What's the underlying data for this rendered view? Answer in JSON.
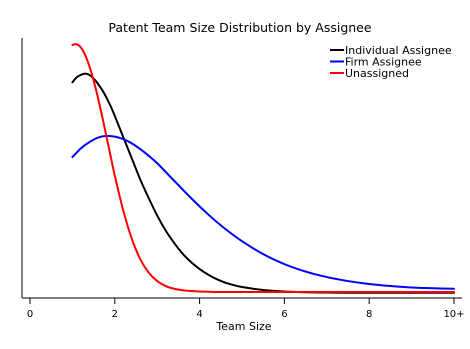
{
  "chart_data": {
    "type": "line",
    "title": "Patent Team Size Distribution by Assignee",
    "xlabel": "Team Size",
    "ylabel": "",
    "xlim": [
      0,
      10
    ],
    "ylim": [
      0,
      1
    ],
    "x_ticks": [
      {
        "value": 0,
        "label": "0"
      },
      {
        "value": 2,
        "label": "2"
      },
      {
        "value": 4,
        "label": "4"
      },
      {
        "value": 6,
        "label": "6"
      },
      {
        "value": 8,
        "label": "8"
      },
      {
        "value": 10,
        "label": "10+"
      }
    ],
    "y_ticks": [],
    "grid": false,
    "legend_position": "top-right",
    "series": [
      {
        "name": "Individual Assignee",
        "color": "#000000",
        "x": [
          1.0,
          1.1,
          1.2,
          1.3,
          1.4,
          1.5,
          1.6,
          1.7,
          1.8,
          1.9,
          2.0,
          2.2,
          2.4,
          2.6,
          2.8,
          3.0,
          3.2,
          3.4,
          3.6,
          3.8,
          4.0,
          4.2,
          4.4,
          4.6,
          4.8,
          5.0,
          5.5,
          6.0,
          6.5,
          7.0,
          7.5,
          8.0,
          8.5,
          9.0,
          9.5,
          10.0
        ],
        "y": [
          0.85,
          0.87,
          0.88,
          0.885,
          0.88,
          0.865,
          0.845,
          0.82,
          0.79,
          0.755,
          0.715,
          0.63,
          0.545,
          0.46,
          0.385,
          0.315,
          0.255,
          0.205,
          0.162,
          0.128,
          0.1,
          0.078,
          0.06,
          0.046,
          0.036,
          0.028,
          0.016,
          0.01,
          0.007,
          0.006,
          0.005,
          0.005,
          0.005,
          0.005,
          0.005,
          0.005
        ]
      },
      {
        "name": "Firm Assignee",
        "color": "#0000ff",
        "x": [
          1.0,
          1.2,
          1.4,
          1.6,
          1.8,
          2.0,
          2.2,
          2.4,
          2.6,
          2.8,
          3.0,
          3.4,
          3.8,
          4.2,
          4.6,
          5.0,
          5.5,
          6.0,
          6.5,
          7.0,
          7.5,
          8.0,
          8.5,
          9.0,
          9.5,
          10.0
        ],
        "y": [
          0.55,
          0.585,
          0.61,
          0.628,
          0.635,
          0.632,
          0.622,
          0.605,
          0.582,
          0.555,
          0.525,
          0.455,
          0.385,
          0.32,
          0.262,
          0.212,
          0.16,
          0.12,
          0.09,
          0.068,
          0.052,
          0.04,
          0.032,
          0.026,
          0.023,
          0.021
        ]
      },
      {
        "name": "Unassigned",
        "color": "#ff0000",
        "x": [
          1.0,
          1.1,
          1.2,
          1.3,
          1.4,
          1.5,
          1.6,
          1.7,
          1.8,
          1.9,
          2.0,
          2.2,
          2.4,
          2.6,
          2.8,
          3.0,
          3.2,
          3.4,
          3.6,
          3.8,
          4.0,
          4.2,
          4.4,
          4.6,
          4.8,
          5.0,
          5.5,
          6.0,
          6.5,
          7.0,
          7.5,
          8.0,
          8.5,
          9.0,
          9.5,
          10.0
        ],
        "y": [
          1.0,
          1.003,
          0.99,
          0.96,
          0.915,
          0.858,
          0.79,
          0.715,
          0.635,
          0.555,
          0.475,
          0.335,
          0.222,
          0.14,
          0.086,
          0.052,
          0.032,
          0.021,
          0.015,
          0.012,
          0.01,
          0.009,
          0.008,
          0.008,
          0.008,
          0.008,
          0.008,
          0.008,
          0.008,
          0.008,
          0.008,
          0.008,
          0.008,
          0.008,
          0.008,
          0.008
        ]
      }
    ]
  }
}
